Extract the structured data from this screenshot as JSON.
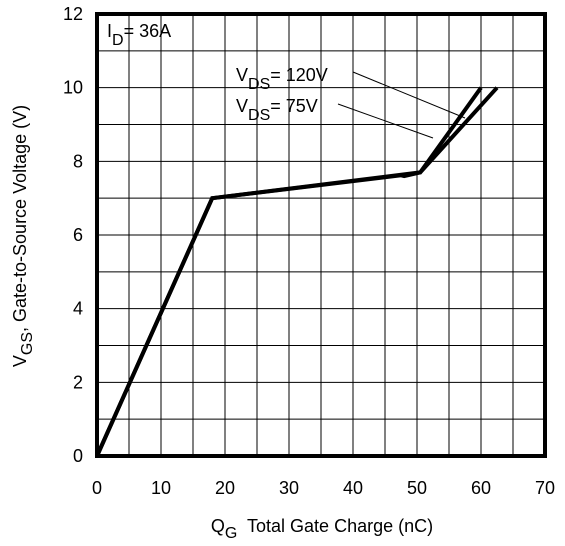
{
  "chart_data": {
    "type": "line",
    "xlabel": {
      "main": "Q",
      "sub": "G",
      "rest": "  Total Gate Charge (nC)"
    },
    "ylabel": {
      "main": "V",
      "sub": "GS",
      "rest": ", Gate-to-Source Voltage (V)"
    },
    "xlim": [
      0,
      70
    ],
    "ylim": [
      0,
      12
    ],
    "x_ticks": [
      0,
      10,
      20,
      30,
      40,
      50,
      60,
      70
    ],
    "y_ticks": [
      0,
      2,
      4,
      6,
      8,
      10,
      12
    ],
    "grid": true,
    "condition": {
      "main": "I",
      "sub": "D",
      "rest": "= 36A"
    },
    "series": [
      {
        "name": {
          "main": "V",
          "sub": "DS",
          "rest": "= 120V"
        },
        "x": [
          0,
          18,
          50.5,
          60
        ],
        "y": [
          0,
          7.0,
          7.7,
          10.0
        ]
      },
      {
        "name": {
          "main": "V",
          "sub": "DS",
          "rest": "= 75V"
        },
        "x": [
          0,
          18,
          47.5,
          48,
          50.5,
          62.5
        ],
        "y": [
          0,
          7.0,
          7.62,
          7.6,
          7.7,
          10.0
        ]
      }
    ]
  }
}
